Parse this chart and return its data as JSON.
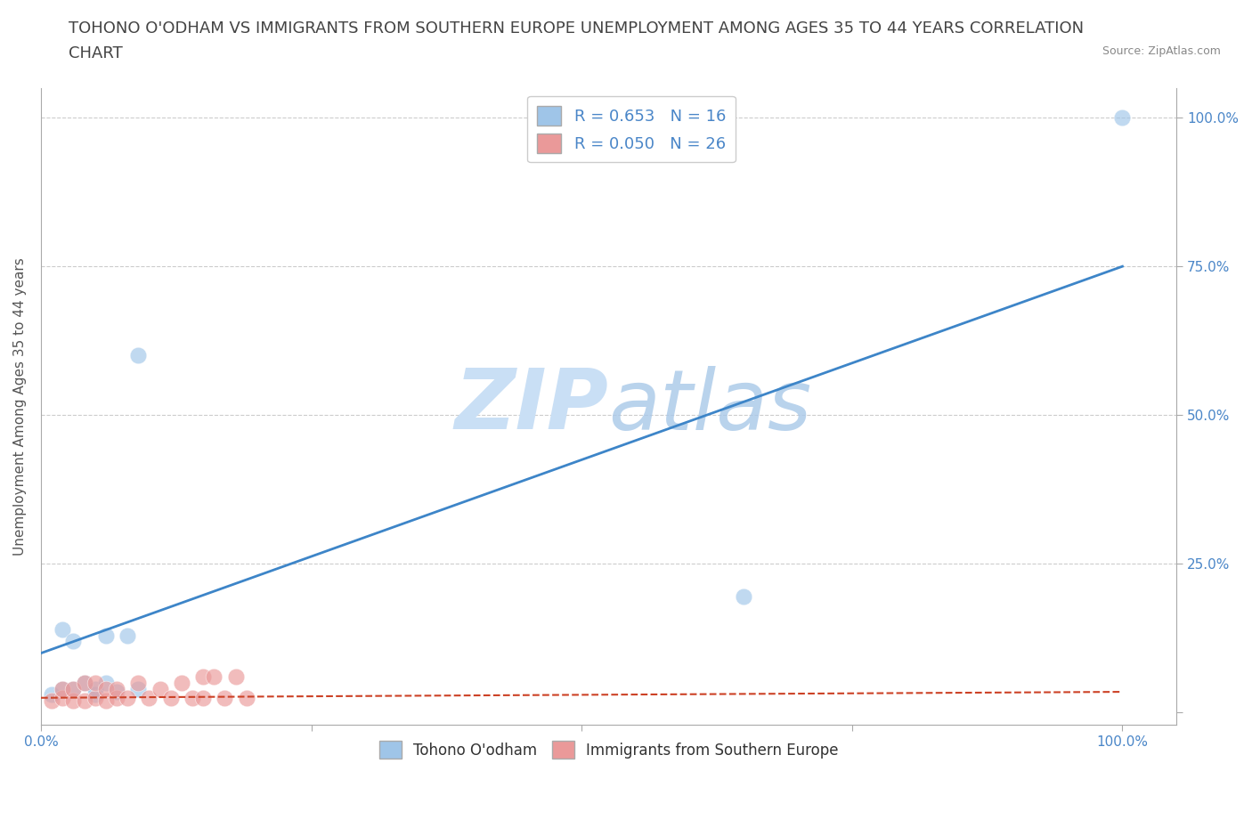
{
  "title_line1": "TOHONO O'ODHAM VS IMMIGRANTS FROM SOUTHERN EUROPE UNEMPLOYMENT AMONG AGES 35 TO 44 YEARS CORRELATION",
  "title_line2": "CHART",
  "source_text": "Source: ZipAtlas.com",
  "ylabel": "Unemployment Among Ages 35 to 44 years",
  "blue_R": 0.653,
  "blue_N": 16,
  "pink_R": 0.05,
  "pink_N": 26,
  "blue_scatter_x": [
    0.01,
    0.02,
    0.02,
    0.03,
    0.03,
    0.04,
    0.05,
    0.05,
    0.06,
    0.06,
    0.07,
    0.08,
    0.09,
    0.09,
    0.65,
    1.0
  ],
  "blue_scatter_y": [
    0.03,
    0.04,
    0.14,
    0.04,
    0.12,
    0.05,
    0.03,
    0.04,
    0.13,
    0.05,
    0.035,
    0.13,
    0.6,
    0.04,
    0.195,
    1.0
  ],
  "pink_scatter_x": [
    0.01,
    0.02,
    0.02,
    0.03,
    0.03,
    0.04,
    0.04,
    0.05,
    0.05,
    0.06,
    0.06,
    0.07,
    0.07,
    0.08,
    0.09,
    0.1,
    0.11,
    0.12,
    0.13,
    0.14,
    0.15,
    0.15,
    0.16,
    0.17,
    0.18,
    0.19
  ],
  "pink_scatter_y": [
    0.02,
    0.025,
    0.04,
    0.02,
    0.04,
    0.02,
    0.05,
    0.025,
    0.05,
    0.02,
    0.04,
    0.025,
    0.04,
    0.025,
    0.05,
    0.025,
    0.04,
    0.025,
    0.05,
    0.025,
    0.06,
    0.025,
    0.06,
    0.025,
    0.06,
    0.025
  ],
  "blue_color": "#9fc5e8",
  "pink_color": "#ea9999",
  "blue_line_color": "#3d85c8",
  "pink_line_color": "#cc4125",
  "background_color": "#ffffff",
  "watermark_color": "#c9dff5",
  "xlim": [
    0.0,
    1.05
  ],
  "ylim": [
    -0.02,
    1.05
  ],
  "xticks": [
    0.0,
    0.25,
    0.5,
    0.75,
    1.0
  ],
  "yticks": [
    0.0,
    0.25,
    0.5,
    0.75,
    1.0
  ],
  "title_fontsize": 13,
  "axis_label_fontsize": 11,
  "tick_fontsize": 11,
  "blue_line_x0": 0.0,
  "blue_line_y0": 0.1,
  "blue_line_x1": 1.0,
  "blue_line_y1": 0.75,
  "pink_line_x0": 0.0,
  "pink_line_y0": 0.025,
  "pink_line_x1": 1.0,
  "pink_line_y1": 0.035
}
